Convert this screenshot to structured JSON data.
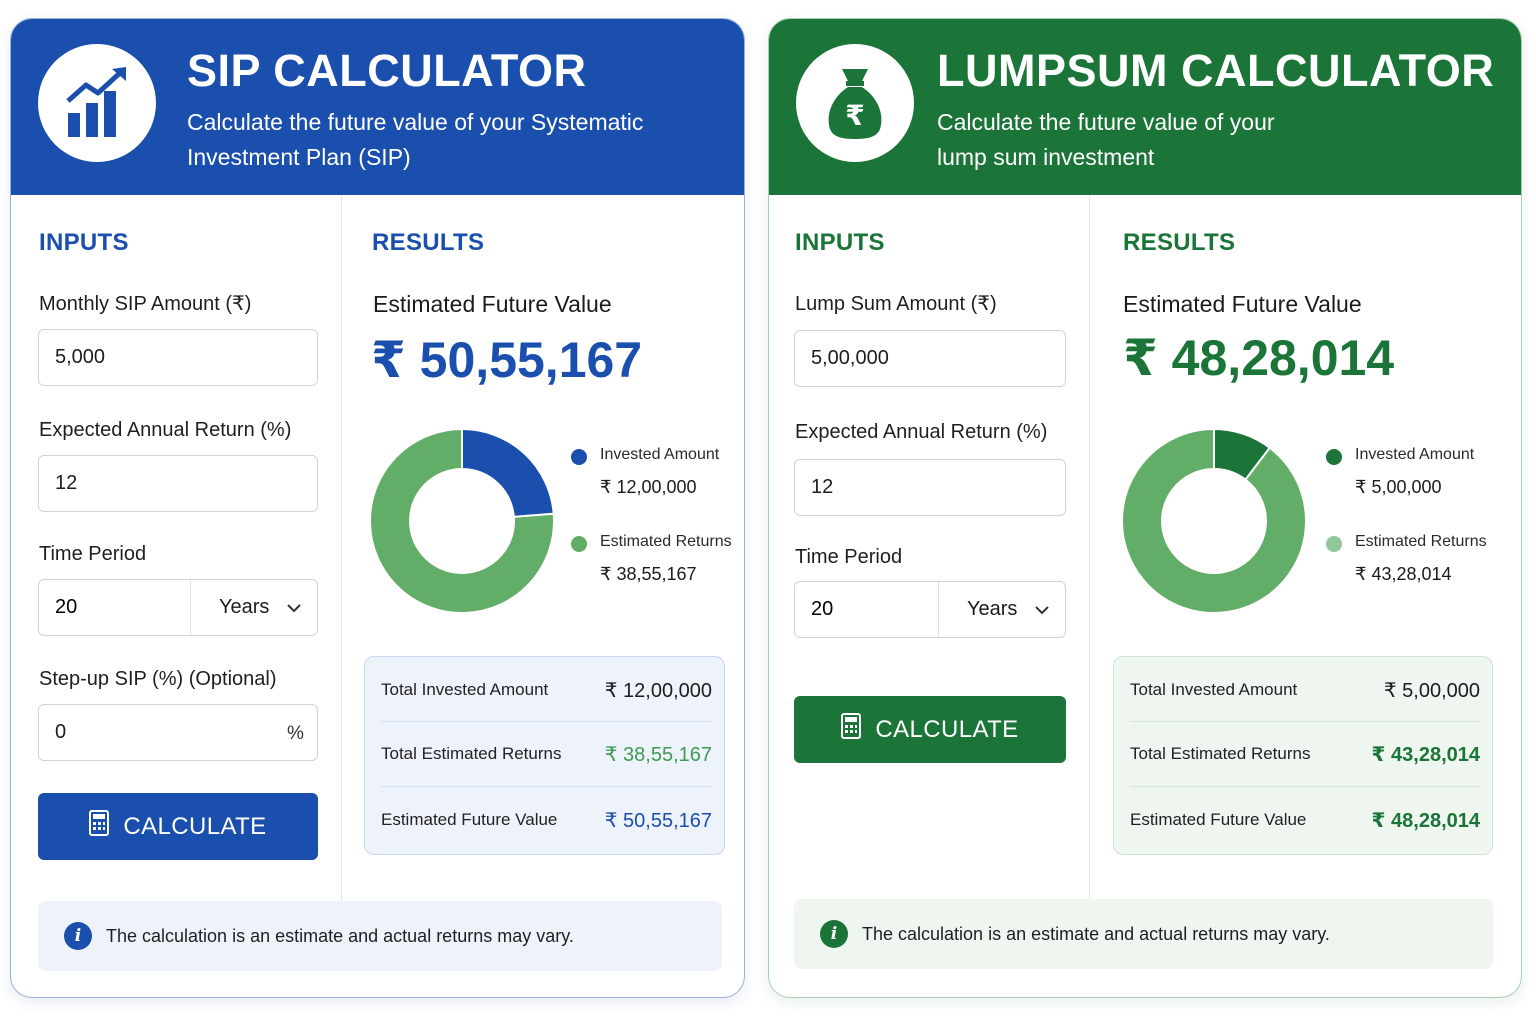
{
  "colors": {
    "sip_primary": "#1a4fad",
    "sip_secondary": "#62ad67",
    "lump_primary": "#1b7438",
    "lump_secondary": "#62ad67"
  },
  "sip": {
    "title": "SIP CALCULATOR",
    "subtitle": "Calculate the future value of your Systematic Investment Plan (SIP)",
    "logo_icon": "growth-chart-icon",
    "inputs_heading": "INPUTS",
    "results_heading": "RESULTS",
    "fields": {
      "monthly_amount_label": "Monthly SIP Amount (₹)",
      "monthly_amount_value": "5,000",
      "annual_return_label": "Expected Annual Return (%)",
      "annual_return_value": "12",
      "time_period_label": "Time Period",
      "time_period_value": "20",
      "time_period_unit": "Years",
      "stepup_label": "Step-up SIP (%) (Optional)",
      "stepup_value": "0",
      "stepup_suffix": "%"
    },
    "calculate_label": "CALCULATE",
    "result_title": "Estimated Future Value",
    "result_value": "₹ 50,55,167",
    "chart_data": {
      "type": "pie",
      "categories": [
        "Invested Amount",
        "Estimated Returns"
      ],
      "values": [
        1200000,
        3855167
      ]
    },
    "legend": [
      {
        "name": "Invested Amount",
        "value": "₹ 12,00,000"
      },
      {
        "name": "Estimated Returns",
        "value": "₹ 38,55,167"
      }
    ],
    "summary": [
      {
        "label": "Total Invested Amount",
        "value": "₹ 12,00,000"
      },
      {
        "label": "Total Estimated Returns",
        "value": "₹ 38,55,167"
      },
      {
        "label": "Estimated Future Value",
        "value": "₹ 50,55,167"
      }
    ],
    "note": "The calculation is an estimate and actual returns may vary."
  },
  "lump": {
    "title": "LUMPSUM CALCULATOR",
    "subtitle": "Calculate the future value of your lump sum investment",
    "logo_icon": "money-bag-icon",
    "inputs_heading": "INPUTS",
    "results_heading": "RESULTS",
    "fields": {
      "amount_label": "Lump Sum Amount (₹)",
      "amount_value": "5,00,000",
      "annual_return_label": "Expected Annual Return (%)",
      "annual_return_value": "12",
      "time_period_label": "Time Period",
      "time_period_value": "20",
      "time_period_unit": "Years"
    },
    "calculate_label": "CALCULATE",
    "result_title": "Estimated Future Value",
    "result_value": "₹ 48,28,014",
    "chart_data": {
      "type": "pie",
      "categories": [
        "Invested Amount",
        "Estimated Returns"
      ],
      "values": [
        500000,
        4328014
      ]
    },
    "legend": [
      {
        "name": "Invested Amount",
        "value": "₹ 5,00,000"
      },
      {
        "name": "Estimated Returns",
        "value": "₹ 43,28,014"
      }
    ],
    "summary": [
      {
        "label": "Total Invested Amount",
        "value": "₹ 5,00,000"
      },
      {
        "label": "Total Estimated Returns",
        "value": "₹ 43,28,014"
      },
      {
        "label": "Estimated Future Value",
        "value": "₹ 48,28,014"
      }
    ],
    "note": "The calculation is an estimate and actual returns may vary."
  }
}
